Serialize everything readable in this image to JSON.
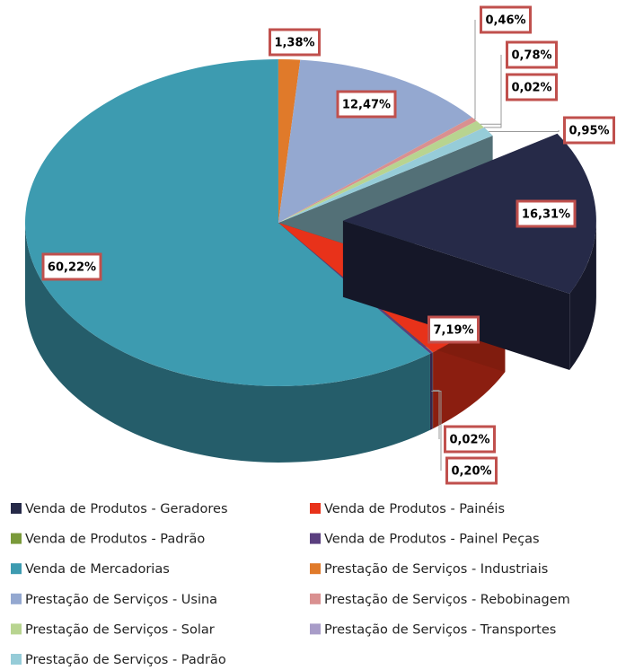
{
  "chart_data": {
    "type": "pie",
    "categories": [
      "Venda de Produtos - Geradores",
      "Venda de Produtos - Painéis",
      "Venda de Produtos - Padrão",
      "Venda de Produtos - Painel Peças",
      "Venda de Mercadorias",
      "Prestação de Serviços - Industriais",
      "Prestação de Serviços - Usina",
      "Prestação de Serviços - Rebobinagem",
      "Prestação de Serviços - Solar",
      "Prestação de Serviços - Transportes",
      "Prestação de Serviços - Padrão"
    ],
    "values": [
      16.31,
      7.19,
      0.02,
      0.2,
      60.22,
      1.38,
      12.47,
      0.46,
      0.78,
      0.02,
      0.95
    ],
    "value_labels": [
      "16,31%",
      "7,19%",
      "0,02%",
      "0,20%",
      "60,22%",
      "1,38%",
      "12,47%",
      "0,46%",
      "0,78%",
      "0,02%",
      "0,95%"
    ],
    "colors": [
      "#262a48",
      "#e8321a",
      "#7a9a3a",
      "#5a3f7f",
      "#3d9bb0",
      "#e07a2a",
      "#94a8d0",
      "#d99090",
      "#b8d490",
      "#a89cc8",
      "#96ccd8"
    ],
    "exploded": [
      0
    ]
  }
}
